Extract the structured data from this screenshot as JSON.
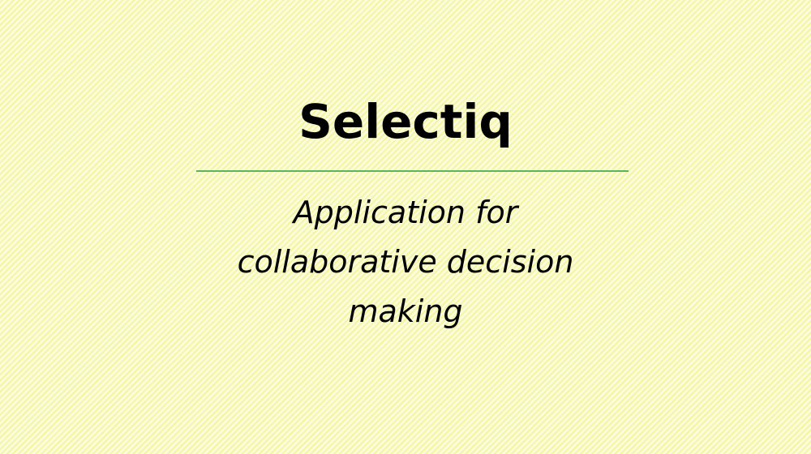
{
  "slide": {
    "title": "Selectiq",
    "subtitle_lines": [
      "Application for",
      "collaborative decision",
      "making"
    ],
    "background_color": "#f6f7b6",
    "divider_color": "#5fb35f"
  }
}
